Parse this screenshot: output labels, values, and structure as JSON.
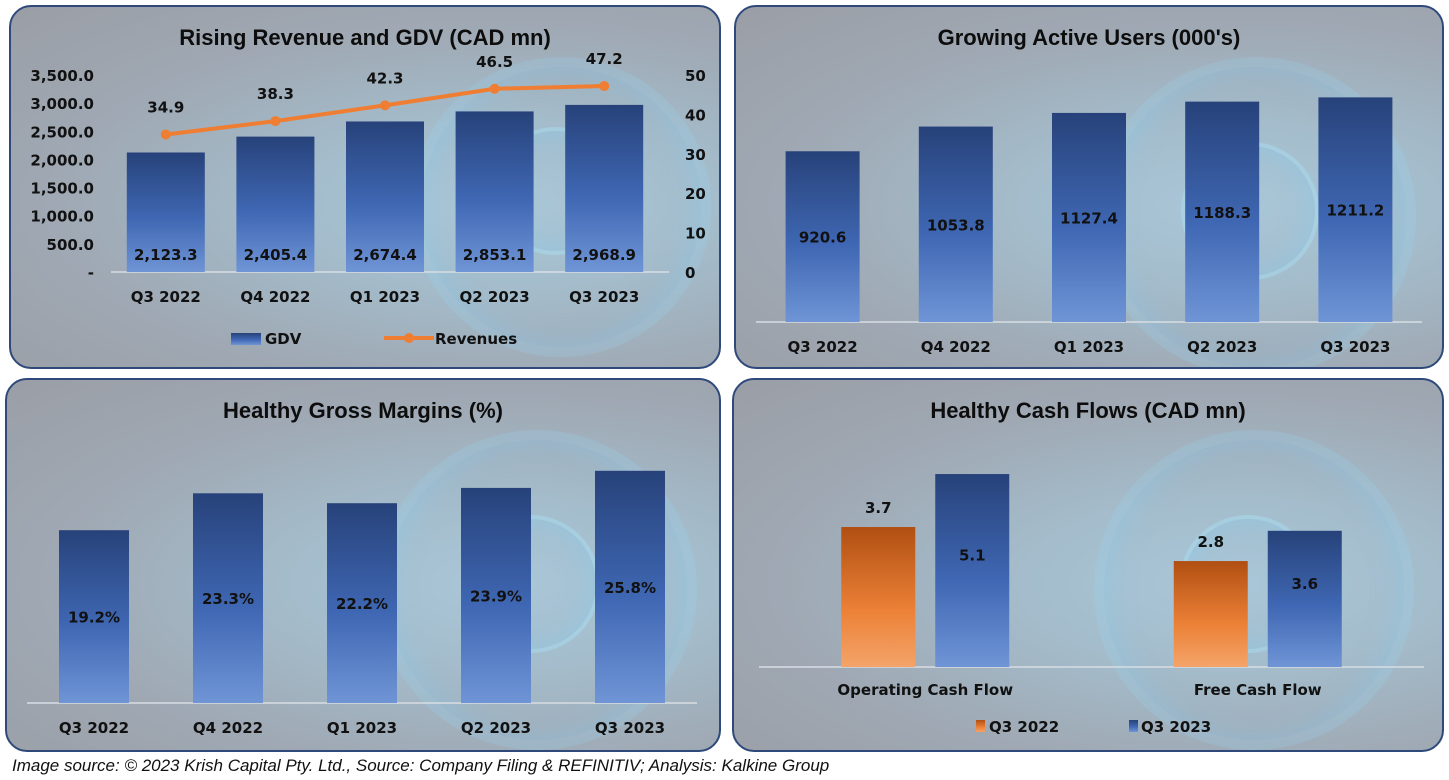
{
  "footer": "Image source: © 2023 Krish Capital Pty. Ltd., Source: Company Filing & REFINITIV; Analysis: Kalkine Group",
  "colors": {
    "bar_blue_top": "#27427a",
    "bar_blue_bottom": "#6f95d6",
    "bar_orange_top": "#b04f12",
    "bar_orange_bottom": "#f4a46a",
    "line_orange": "#ef7d32",
    "axis_line": "#d8dde3",
    "border": "#2f4a7a"
  },
  "chart_data": [
    {
      "id": "revenue_gdv",
      "type": "bar",
      "title": "Rising Revenue and GDV (CAD mn)",
      "categories": [
        "Q3 2022",
        "Q4 2022",
        "Q1 2023",
        "Q2 2023",
        "Q3 2023"
      ],
      "series": [
        {
          "name": "GDV",
          "type": "bar",
          "axis": "left",
          "values": [
            2123.3,
            2405.4,
            2674.4,
            2853.1,
            2968.9
          ],
          "labels": [
            "2,123.3",
            "2,405.4",
            "2,674.4",
            "2,853.1",
            "2,968.9"
          ]
        },
        {
          "name": "Revenues",
          "type": "line",
          "axis": "right",
          "values": [
            34.9,
            38.3,
            42.3,
            46.5,
            47.2
          ],
          "labels": [
            "34.9",
            "38.3",
            "42.3",
            "46.5",
            "47.2"
          ]
        }
      ],
      "y_left": {
        "range": [
          0,
          3500
        ],
        "ticks": [
          "-",
          "500.0",
          "1,000.0",
          "1,500.0",
          "2,000.0",
          "2,500.0",
          "3,000.0",
          "3,500.0"
        ]
      },
      "y_right": {
        "range": [
          0,
          50
        ],
        "ticks": [
          "0",
          "10",
          "20",
          "30",
          "40",
          "50"
        ]
      },
      "legend": [
        "GDV",
        "Revenues"
      ],
      "legend_position": "bottom",
      "grid": false
    },
    {
      "id": "active_users",
      "type": "bar",
      "title": "Growing Active Users (000's)",
      "categories": [
        "Q3 2022",
        "Q4 2022",
        "Q1 2023",
        "Q2 2023",
        "Q3 2023"
      ],
      "values": [
        920.6,
        1053.8,
        1127.4,
        1188.3,
        1211.2
      ],
      "labels": [
        "920.6",
        "1053.8",
        "1127.4",
        "1188.3",
        "1211.2"
      ],
      "ylim": [
        0,
        1375
      ],
      "grid": false
    },
    {
      "id": "gross_margins",
      "type": "bar",
      "title": "Healthy Gross Margins (%)",
      "categories": [
        "Q3 2022",
        "Q4 2022",
        "Q1 2023",
        "Q2 2023",
        "Q3 2023"
      ],
      "values": [
        19.2,
        23.3,
        22.2,
        23.9,
        25.8
      ],
      "labels": [
        "19.2%",
        "23.3%",
        "22.2%",
        "23.9%",
        "25.8%"
      ],
      "ylim": [
        0,
        27
      ],
      "grid": false
    },
    {
      "id": "cash_flows",
      "type": "bar",
      "title": "Healthy Cash Flows (CAD mn)",
      "categories": [
        "Operating Cash Flow",
        "Free Cash Flow"
      ],
      "series": [
        {
          "name": "Q3 2022",
          "color": "orange",
          "values": [
            3.7,
            2.8
          ],
          "labels": [
            "3.7",
            "2.8"
          ]
        },
        {
          "name": "Q3 2023",
          "color": "blue",
          "values": [
            5.1,
            3.6
          ],
          "labels": [
            "5.1",
            "3.6"
          ]
        }
      ],
      "ylim": [
        0,
        6.0
      ],
      "legend": [
        "Q3 2022",
        "Q3 2023"
      ],
      "legend_position": "bottom",
      "grid": false
    }
  ]
}
